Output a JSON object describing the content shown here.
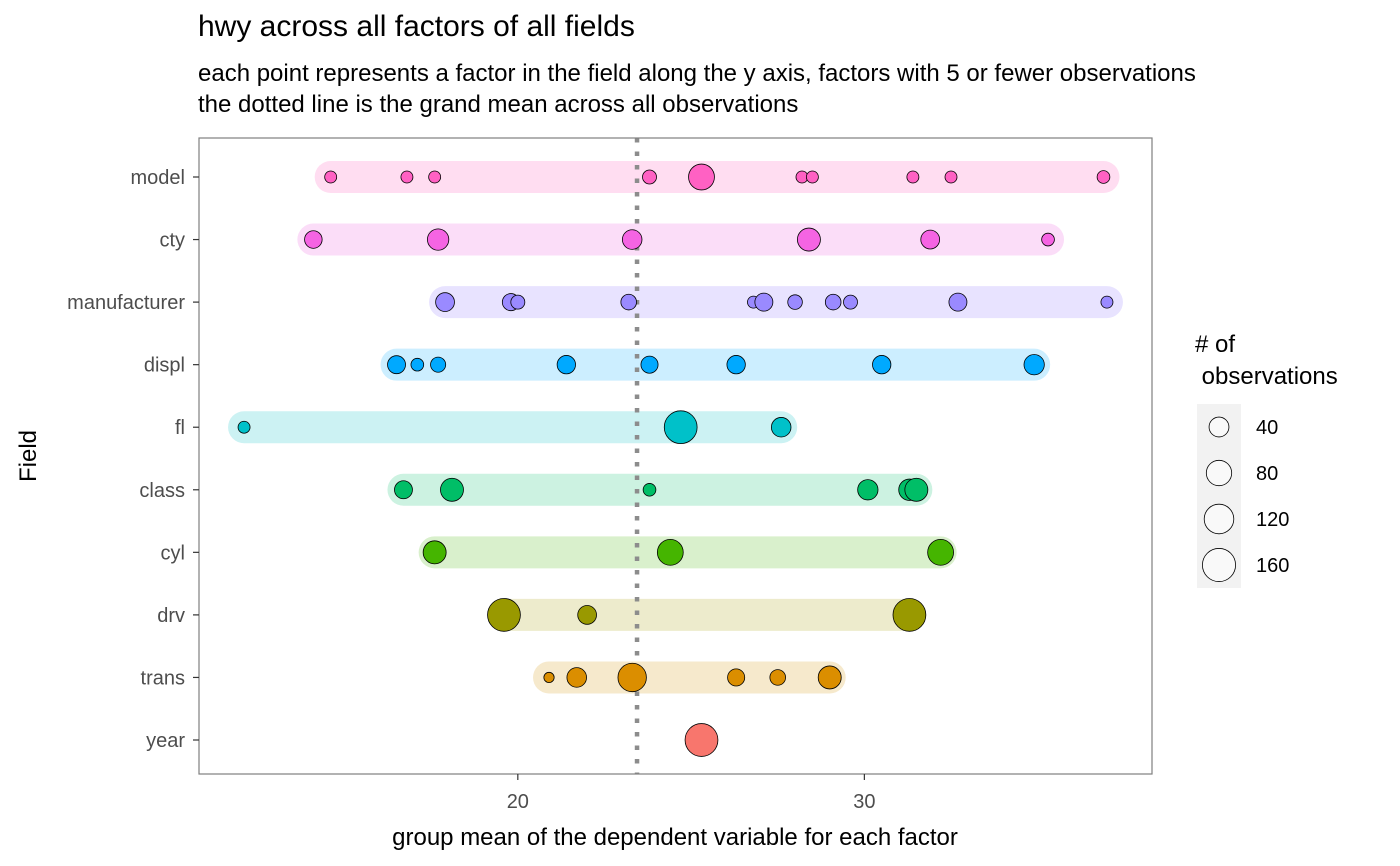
{
  "chart_data": {
    "type": "scatter",
    "title": "hwy across all factors of all fields",
    "subtitle": [
      "each point represents a factor in the field along the y axis, factors with 5 or fewer observations",
      "the dotted line is the grand mean across all observations"
    ],
    "xlabel": "group mean of the dependent variable for each factor",
    "ylabel": "Field",
    "xlim": [
      10.8,
      38.3
    ],
    "x_ticks": [
      20,
      30
    ],
    "grand_mean": 23.44,
    "grid": false,
    "legend": {
      "title": [
        "# of",
        " observations"
      ],
      "placement": "right",
      "entries": [
        {
          "label": "40",
          "value": 40
        },
        {
          "label": "80",
          "value": 80
        },
        {
          "label": "120",
          "value": 120
        },
        {
          "label": "160",
          "value": 160
        }
      ]
    },
    "fields": [
      {
        "name": "model",
        "color": "#FF61C3",
        "band": "#FFDDF1",
        "points": [
          [
            14.6,
            5
          ],
          [
            16.8,
            5
          ],
          [
            17.6,
            5
          ],
          [
            23.8,
            8
          ],
          [
            25.3,
            40
          ],
          [
            28.2,
            5
          ],
          [
            28.5,
            5
          ],
          [
            31.4,
            5
          ],
          [
            32.5,
            5
          ],
          [
            36.9,
            6
          ]
        ]
      },
      {
        "name": "cty",
        "color": "#F564E3",
        "band": "#FBDDF8",
        "points": [
          [
            14.1,
            15
          ],
          [
            17.7,
            25
          ],
          [
            23.3,
            20
          ],
          [
            28.4,
            30
          ],
          [
            31.9,
            18
          ],
          [
            35.3,
            6
          ]
        ]
      },
      {
        "name": "manufacturer",
        "color": "#9A8AFF",
        "band": "#E8E3FF",
        "points": [
          [
            17.9,
            18
          ],
          [
            19.8,
            14
          ],
          [
            20.0,
            8
          ],
          [
            23.2,
            11
          ],
          [
            26.8,
            5
          ],
          [
            27.1,
            16
          ],
          [
            28.0,
            9
          ],
          [
            29.1,
            11
          ],
          [
            29.6,
            8
          ],
          [
            32.7,
            16
          ],
          [
            37.0,
            5
          ]
        ]
      },
      {
        "name": "displ",
        "color": "#00A9FF",
        "band": "#CCEEFF",
        "points": [
          [
            16.5,
            16
          ],
          [
            17.1,
            6
          ],
          [
            17.7,
            10
          ],
          [
            21.4,
            17
          ],
          [
            23.8,
            14
          ],
          [
            26.3,
            17
          ],
          [
            30.5,
            17
          ],
          [
            34.9,
            22
          ]
        ]
      },
      {
        "name": "fl",
        "color": "#00C1C9",
        "band": "#CCF2F3",
        "points": [
          [
            12.1,
            5
          ],
          [
            24.7,
            70
          ],
          [
            27.6,
            20
          ]
        ]
      },
      {
        "name": "class",
        "color": "#00BE67",
        "band": "#CCF2E1",
        "points": [
          [
            16.7,
            16
          ],
          [
            18.1,
            30
          ],
          [
            23.8,
            6
          ],
          [
            30.1,
            22
          ],
          [
            31.3,
            25
          ],
          [
            31.5,
            30
          ]
        ]
      },
      {
        "name": "cyl",
        "color": "#45B500",
        "band": "#D9F0CC",
        "points": [
          [
            17.6,
            30
          ],
          [
            24.4,
            40
          ],
          [
            32.2,
            40
          ]
        ]
      },
      {
        "name": "drv",
        "color": "#999900",
        "band": "#EDEBCC",
        "points": [
          [
            19.6,
            70
          ],
          [
            22.0,
            18
          ],
          [
            31.3,
            70
          ]
        ]
      },
      {
        "name": "trans",
        "color": "#DB8E00",
        "band": "#F6E9CC",
        "points": [
          [
            20.9,
            3
          ],
          [
            21.7,
            20
          ],
          [
            23.3,
            50
          ],
          [
            26.3,
            14
          ],
          [
            27.5,
            11
          ],
          [
            29.0,
            30
          ]
        ]
      },
      {
        "name": "year",
        "color": "#F8766D",
        "band": "#FFFFFF",
        "points": [
          [
            25.3,
            70
          ]
        ]
      }
    ]
  }
}
